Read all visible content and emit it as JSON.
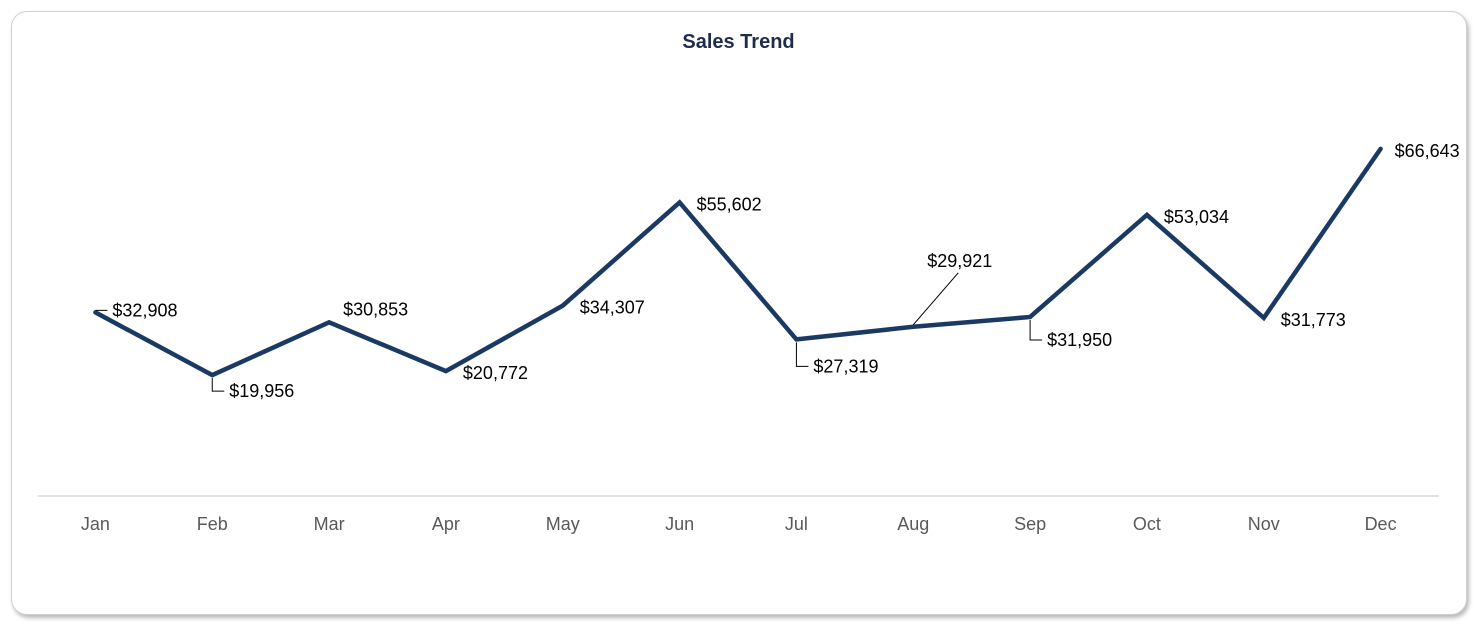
{
  "chart_data": {
    "type": "line",
    "title": "Sales Trend",
    "xlabel": "",
    "ylabel": "",
    "categories": [
      "Jan",
      "Feb",
      "Mar",
      "Apr",
      "May",
      "Jun",
      "Jul",
      "Aug",
      "Sep",
      "Oct",
      "Nov",
      "Dec"
    ],
    "series": [
      {
        "values": [
          32908,
          19956,
          30853,
          20772,
          34307,
          55602,
          27319,
          29921,
          31950,
          53034,
          31773,
          66643
        ],
        "labels": [
          "$32,908",
          "$19,956",
          "$30,853",
          "$20,772",
          "$34,307",
          "$55,602",
          "$27,319",
          "$29,921",
          "$31,950",
          "$53,034",
          "$31,773",
          "$66,643"
        ],
        "color": "#1b3a63"
      }
    ],
    "ylim": [
      -5000,
      85000
    ],
    "grid": false,
    "legend": "none",
    "axis_color": "#d9d9d9",
    "tick_color": "#595959",
    "leader_color": "#000000"
  }
}
